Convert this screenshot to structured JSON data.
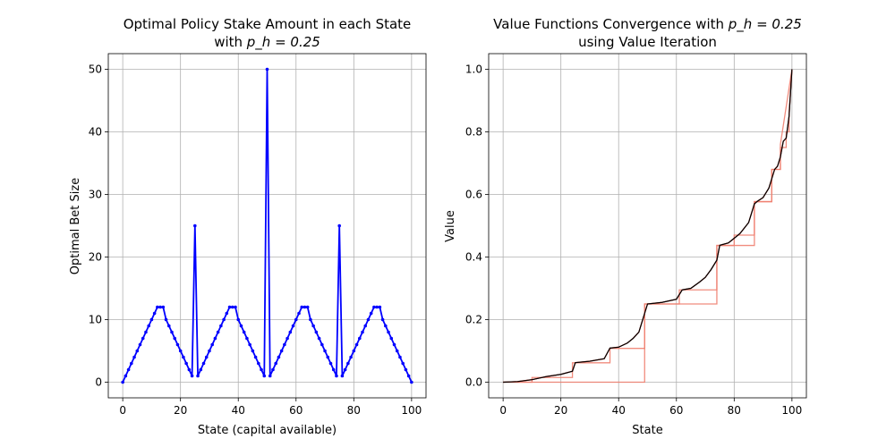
{
  "chart_data": [
    {
      "type": "line",
      "title": "Optimal Policy Stake Amount in each State",
      "title_line2_prefix": "with ",
      "title_math": "p_h = 0.25",
      "xlabel": "State (capital available)",
      "ylabel": "Optimal Bet Size",
      "xlim": [
        -5,
        105
      ],
      "ylim": [
        -2.5,
        52.5
      ],
      "xticks": [
        0,
        20,
        40,
        60,
        80,
        100
      ],
      "yticks": [
        0,
        10,
        20,
        30,
        40,
        50
      ],
      "grid": true,
      "colors": {
        "series": "#0000ff"
      },
      "series": [
        {
          "x": [
            0,
            1,
            2,
            3,
            4,
            5,
            6,
            7,
            8,
            9,
            10,
            11,
            12,
            13,
            14,
            15,
            16,
            17,
            18,
            19,
            20,
            21,
            22,
            23,
            24,
            25,
            26,
            27,
            28,
            29,
            30,
            31,
            32,
            33,
            34,
            35,
            36,
            37,
            38,
            39,
            40,
            41,
            42,
            43,
            44,
            45,
            46,
            47,
            48,
            49,
            50,
            51,
            52,
            53,
            54,
            55,
            56,
            57,
            58,
            59,
            60,
            61,
            62,
            63,
            64,
            65,
            66,
            67,
            68,
            69,
            70,
            71,
            72,
            73,
            74,
            75,
            76,
            77,
            78,
            79,
            80,
            81,
            82,
            83,
            84,
            85,
            86,
            87,
            88,
            89,
            90,
            91,
            92,
            93,
            94,
            95,
            96,
            97,
            98,
            99,
            100
          ],
          "y": [
            0,
            1,
            2,
            3,
            4,
            5,
            6,
            7,
            8,
            9,
            10,
            11,
            12,
            12,
            12,
            10,
            9,
            8,
            7,
            6,
            5,
            4,
            3,
            2,
            1,
            25,
            1,
            2,
            3,
            4,
            5,
            6,
            7,
            8,
            9,
            10,
            11,
            12,
            12,
            12,
            10,
            9,
            8,
            7,
            6,
            5,
            4,
            3,
            2,
            1,
            50,
            1,
            2,
            3,
            4,
            5,
            6,
            7,
            8,
            9,
            10,
            11,
            12,
            12,
            12,
            10,
            9,
            8,
            7,
            6,
            5,
            4,
            3,
            2,
            1,
            25,
            1,
            2,
            3,
            4,
            5,
            6,
            7,
            8,
            9,
            10,
            11,
            12,
            12,
            12,
            10,
            9,
            8,
            7,
            6,
            5,
            4,
            3,
            2,
            1,
            0
          ]
        }
      ]
    },
    {
      "type": "line",
      "title_prefix": "Value Functions Convergence with ",
      "title_math": "p_h = 0.25",
      "title_line2": "using Value Iteration",
      "xlabel": "State",
      "ylabel": "Value",
      "xlim": [
        -5,
        105
      ],
      "ylim": [
        -0.05,
        1.05
      ],
      "xticks": [
        0,
        20,
        40,
        60,
        80,
        100
      ],
      "yticks": [
        0.0,
        0.2,
        0.4,
        0.6,
        0.8,
        1.0
      ],
      "ytick_labels": [
        "0.0",
        "0.2",
        "0.4",
        "0.6",
        "0.8",
        "1.0"
      ],
      "grid": true,
      "colors": {
        "early": "#f08070",
        "mid": "#c0392b",
        "final": "#000000"
      },
      "series": [
        {
          "role": "early",
          "x": [
            0,
            24,
            24,
            49,
            49,
            74,
            74,
            87,
            87,
            93,
            93,
            96,
            96,
            98,
            98,
            99,
            99,
            100
          ],
          "y": [
            0,
            0,
            0,
            0,
            0.25,
            0.25,
            0.437,
            0.437,
            0.577,
            0.577,
            0.68,
            0.68,
            0.75,
            0.75,
            0.8,
            0.8,
            0.86,
            1.0
          ]
        },
        {
          "role": "early",
          "x": [
            0,
            10,
            10,
            24,
            24,
            37,
            37,
            49,
            49,
            61,
            61,
            74,
            74,
            80,
            80,
            87,
            87,
            93,
            93,
            96,
            96,
            100
          ],
          "y": [
            0,
            0,
            0.015,
            0.015,
            0.062,
            0.062,
            0.108,
            0.108,
            0.25,
            0.25,
            0.295,
            0.295,
            0.437,
            0.437,
            0.47,
            0.47,
            0.577,
            0.577,
            0.68,
            0.68,
            0.76,
            1.0
          ]
        },
        {
          "role": "mid",
          "x": [
            0,
            5,
            10,
            12,
            15,
            20,
            24,
            25,
            30,
            35,
            37,
            40,
            43,
            45,
            47,
            49,
            50,
            55,
            60,
            62,
            65,
            68,
            70,
            72,
            74,
            75,
            78,
            80,
            82,
            85,
            87,
            88,
            90,
            92,
            94,
            95,
            96,
            97,
            98,
            99,
            100
          ],
          "y": [
            0,
            0.002,
            0.008,
            0.012,
            0.018,
            0.025,
            0.035,
            0.0625,
            0.067,
            0.075,
            0.109,
            0.112,
            0.125,
            0.14,
            0.16,
            0.22,
            0.25,
            0.255,
            0.265,
            0.295,
            0.3,
            0.32,
            0.335,
            0.36,
            0.39,
            0.4375,
            0.445,
            0.46,
            0.475,
            0.51,
            0.57,
            0.578,
            0.59,
            0.62,
            0.68,
            0.69,
            0.72,
            0.77,
            0.78,
            0.85,
            1.0
          ]
        },
        {
          "role": "final",
          "x": [
            0,
            5,
            10,
            12,
            15,
            20,
            24,
            25,
            30,
            35,
            37,
            40,
            43,
            45,
            47,
            49,
            50,
            55,
            60,
            62,
            65,
            68,
            70,
            72,
            74,
            75,
            78,
            80,
            82,
            85,
            87,
            88,
            90,
            92,
            94,
            95,
            96,
            97,
            98,
            99,
            100
          ],
          "y": [
            0,
            0.002,
            0.008,
            0.012,
            0.018,
            0.025,
            0.035,
            0.0625,
            0.067,
            0.075,
            0.109,
            0.112,
            0.125,
            0.14,
            0.16,
            0.22,
            0.25,
            0.255,
            0.265,
            0.295,
            0.3,
            0.32,
            0.335,
            0.36,
            0.39,
            0.4375,
            0.445,
            0.46,
            0.475,
            0.51,
            0.57,
            0.578,
            0.59,
            0.62,
            0.68,
            0.69,
            0.72,
            0.77,
            0.78,
            0.85,
            1.0
          ]
        }
      ]
    }
  ]
}
